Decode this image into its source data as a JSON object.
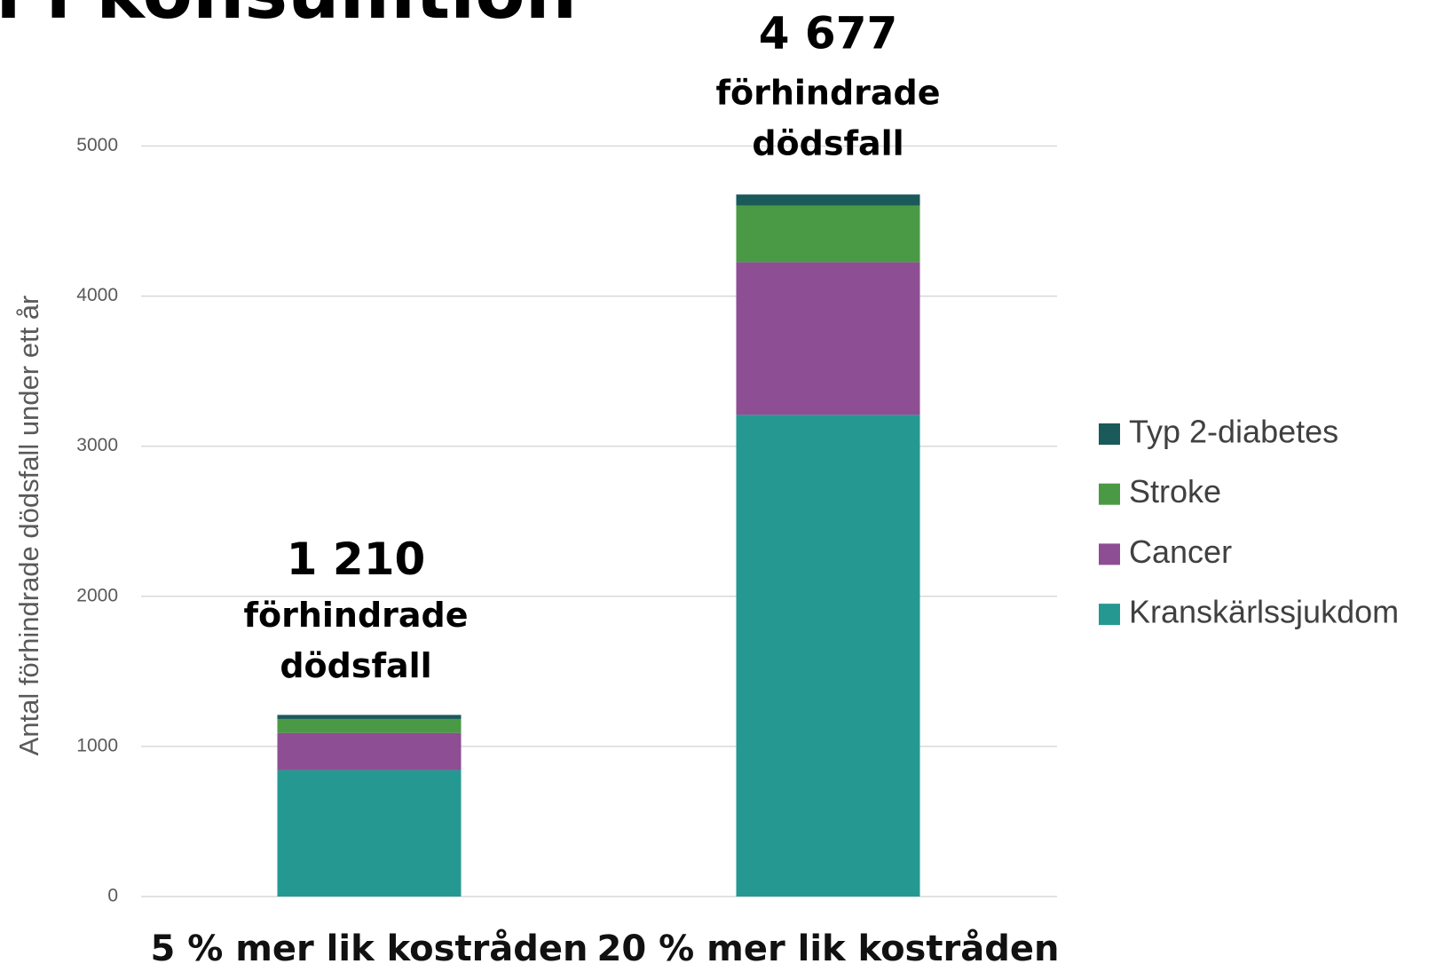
{
  "chart_data": {
    "type": "stacked_bar",
    "title": "n i konsumtion",
    "y_label": "Antal förhindrade dödsfall under ett år",
    "categories": [
      "5 % mer lik kostråden",
      "20 % mer lik kostråden"
    ],
    "series": [
      {
        "name": "Kranskärlssjukdom",
        "color": "#259892",
        "values": [
          843,
          3209
        ]
      },
      {
        "name": "Cancer",
        "color": "#8e4e93",
        "values": [
          247,
          1017
        ]
      },
      {
        "name": "Stroke",
        "color": "#4a9a45",
        "values": [
          93,
          377
        ]
      },
      {
        "name": "Typ 2-diabetes",
        "color": "#1a5a5a",
        "values": [
          27,
          74
        ]
      }
    ],
    "totals": [
      1210,
      4677
    ],
    "total_labels": [
      "1 210",
      "4 677"
    ],
    "annotation_lines": [
      "förhindrade",
      "dödsfall"
    ],
    "ylim": [
      0,
      5000
    ],
    "yticks": [
      0,
      1000,
      2000,
      3000,
      4000,
      5000
    ],
    "grid": true,
    "legend": "right"
  }
}
